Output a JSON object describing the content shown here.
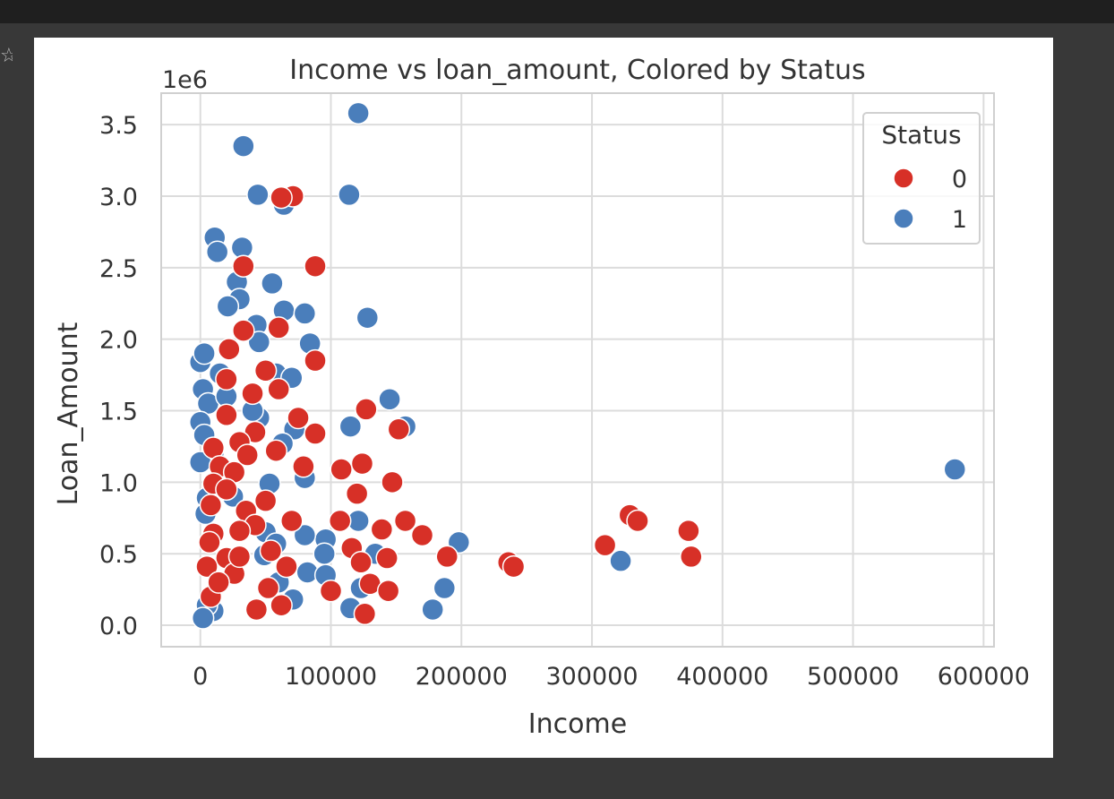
{
  "chart_data": {
    "type": "scatter",
    "title": "Income vs loan_amount, Colored by Status",
    "xlabel": "Income",
    "ylabel": "Loan_Amount",
    "y_offset_label": "1e6",
    "xlim": [
      -30000,
      608000
    ],
    "ylim": [
      -0.15,
      3.72
    ],
    "x_ticks": [
      0,
      100000,
      200000,
      300000,
      400000,
      500000,
      600000
    ],
    "x_tick_labels": [
      "0",
      "100000",
      "200000",
      "300000",
      "400000",
      "500000",
      "600000"
    ],
    "y_ticks": [
      0.0,
      0.5,
      1.0,
      1.5,
      2.0,
      2.5,
      3.0,
      3.5
    ],
    "y_tick_labels": [
      "0.0",
      "0.5",
      "1.0",
      "1.5",
      "2.0",
      "2.5",
      "3.0",
      "3.5"
    ],
    "grid": true,
    "legend": {
      "title": "Status",
      "position": "top-right"
    },
    "series": [
      {
        "name": "0",
        "color": "#d73027",
        "points": [
          [
            33000,
            2.51
          ],
          [
            88000,
            2.51
          ],
          [
            71000,
            3.0
          ],
          [
            62000,
            2.99
          ],
          [
            60000,
            2.08
          ],
          [
            33000,
            2.06
          ],
          [
            22000,
            1.93
          ],
          [
            88000,
            1.85
          ],
          [
            50000,
            1.78
          ],
          [
            20000,
            1.72
          ],
          [
            40000,
            1.62
          ],
          [
            60000,
            1.65
          ],
          [
            127000,
            1.51
          ],
          [
            20000,
            1.47
          ],
          [
            75000,
            1.45
          ],
          [
            88000,
            1.34
          ],
          [
            42000,
            1.35
          ],
          [
            152000,
            1.37
          ],
          [
            30000,
            1.28
          ],
          [
            10000,
            1.24
          ],
          [
            58000,
            1.22
          ],
          [
            36000,
            1.19
          ],
          [
            79000,
            1.11
          ],
          [
            15000,
            1.11
          ],
          [
            108000,
            1.09
          ],
          [
            124000,
            1.13
          ],
          [
            26000,
            1.07
          ],
          [
            147000,
            1.0
          ],
          [
            10000,
            0.99
          ],
          [
            20000,
            0.95
          ],
          [
            120000,
            0.92
          ],
          [
            50000,
            0.87
          ],
          [
            8000,
            0.84
          ],
          [
            35000,
            0.8
          ],
          [
            329000,
            0.77
          ],
          [
            335000,
            0.73
          ],
          [
            70000,
            0.73
          ],
          [
            107000,
            0.73
          ],
          [
            157000,
            0.73
          ],
          [
            42000,
            0.7
          ],
          [
            30000,
            0.66
          ],
          [
            10000,
            0.64
          ],
          [
            139000,
            0.67
          ],
          [
            374000,
            0.66
          ],
          [
            170000,
            0.63
          ],
          [
            310000,
            0.56
          ],
          [
            116000,
            0.54
          ],
          [
            54000,
            0.52
          ],
          [
            7000,
            0.58
          ],
          [
            20000,
            0.47
          ],
          [
            189000,
            0.48
          ],
          [
            143000,
            0.47
          ],
          [
            376000,
            0.48
          ],
          [
            66000,
            0.41
          ],
          [
            26000,
            0.36
          ],
          [
            5000,
            0.41
          ],
          [
            236000,
            0.44
          ],
          [
            240000,
            0.41
          ],
          [
            123000,
            0.44
          ],
          [
            130000,
            0.29
          ],
          [
            144000,
            0.24
          ],
          [
            100000,
            0.24
          ],
          [
            52000,
            0.26
          ],
          [
            8000,
            0.2
          ],
          [
            62000,
            0.14
          ],
          [
            43000,
            0.11
          ],
          [
            126000,
            0.08
          ],
          [
            14000,
            0.3
          ],
          [
            30000,
            0.48
          ]
        ]
      },
      {
        "name": "1",
        "color": "#4a7ebb",
        "points": [
          [
            121000,
            3.58
          ],
          [
            33000,
            3.35
          ],
          [
            44000,
            3.01
          ],
          [
            114000,
            3.01
          ],
          [
            64000,
            2.94
          ],
          [
            11000,
            2.71
          ],
          [
            13000,
            2.61
          ],
          [
            32000,
            2.64
          ],
          [
            28000,
            2.4
          ],
          [
            55000,
            2.39
          ],
          [
            30000,
            2.28
          ],
          [
            21000,
            2.23
          ],
          [
            64000,
            2.2
          ],
          [
            80000,
            2.18
          ],
          [
            128000,
            2.15
          ],
          [
            43000,
            2.1
          ],
          [
            84000,
            1.97
          ],
          [
            45000,
            1.98
          ],
          [
            0,
            1.84
          ],
          [
            3000,
            1.9
          ],
          [
            15000,
            1.76
          ],
          [
            58000,
            1.76
          ],
          [
            70000,
            1.73
          ],
          [
            2000,
            1.65
          ],
          [
            6000,
            1.55
          ],
          [
            145000,
            1.58
          ],
          [
            157000,
            1.39
          ],
          [
            115000,
            1.39
          ],
          [
            72000,
            1.37
          ],
          [
            0,
            1.42
          ],
          [
            3000,
            1.33
          ],
          [
            45000,
            1.45
          ],
          [
            63000,
            1.27
          ],
          [
            10000,
            1.2
          ],
          [
            0,
            1.14
          ],
          [
            80000,
            1.03
          ],
          [
            53000,
            0.99
          ],
          [
            5000,
            0.89
          ],
          [
            4000,
            0.78
          ],
          [
            50000,
            0.65
          ],
          [
            121000,
            0.73
          ],
          [
            198000,
            0.58
          ],
          [
            96000,
            0.6
          ],
          [
            80000,
            0.63
          ],
          [
            58000,
            0.57
          ],
          [
            95000,
            0.5
          ],
          [
            49000,
            0.49
          ],
          [
            134000,
            0.5
          ],
          [
            322000,
            0.45
          ],
          [
            82000,
            0.37
          ],
          [
            96000,
            0.35
          ],
          [
            60000,
            0.3
          ],
          [
            187000,
            0.26
          ],
          [
            123000,
            0.26
          ],
          [
            71000,
            0.18
          ],
          [
            115000,
            0.12
          ],
          [
            178000,
            0.11
          ],
          [
            10000,
            0.1
          ],
          [
            5000,
            0.14
          ],
          [
            2000,
            0.05
          ],
          [
            578000,
            1.09
          ],
          [
            20000,
            1.6
          ],
          [
            40000,
            1.5
          ],
          [
            15000,
            0.3
          ],
          [
            25000,
            0.9
          ]
        ]
      }
    ]
  }
}
